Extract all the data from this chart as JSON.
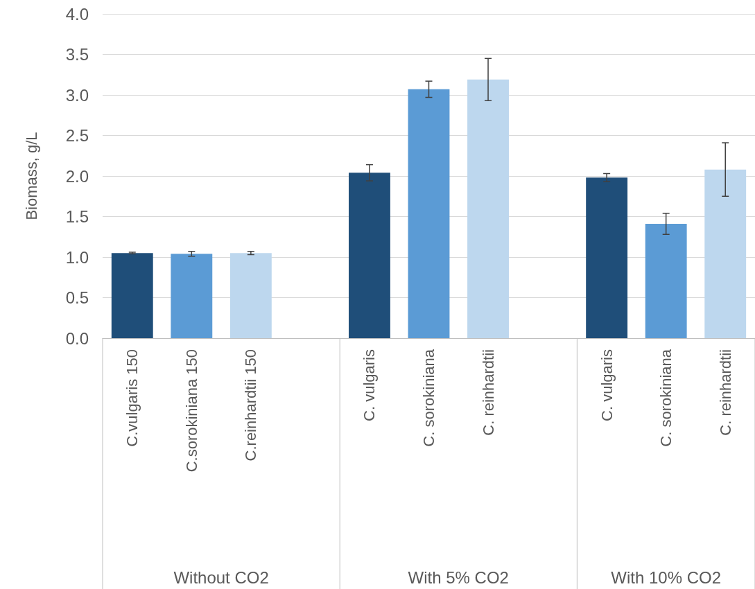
{
  "chart_data": {
    "type": "bar",
    "ylabel": "Biomass, g/L",
    "categories": [
      "C.vulgaris 150",
      "C.sorokiniana 150",
      "C.reinhardtii 150",
      null,
      "C. vulgaris",
      "C. sorokiniana",
      "C. reinhardtii",
      null,
      "C. vulgaris",
      "C. sorokiniana",
      "C. reinhardtii"
    ],
    "values": [
      1.05,
      1.04,
      1.05,
      null,
      2.04,
      3.07,
      3.19,
      null,
      1.98,
      1.41,
      2.08
    ],
    "errors": [
      0.01,
      0.03,
      0.02,
      null,
      0.1,
      0.1,
      0.26,
      null,
      0.05,
      0.13,
      0.33
    ],
    "colors": [
      "#1f4e79",
      "#5b9bd5",
      "#bdd7ee",
      null,
      "#1f4e79",
      "#5b9bd5",
      "#bdd7ee",
      null,
      "#1f4e79",
      "#5b9bd5",
      "#bdd7ee"
    ],
    "annotations": [
      "Without CO2",
      "With 5% CO2",
      "With 10% CO2"
    ],
    "ylim": [
      0,
      4
    ],
    "yticks": [
      {
        "value": 0,
        "label": "0.0"
      },
      0.5,
      {
        "value": 1,
        "label": "1.0"
      },
      1.5,
      {
        "value": 2,
        "label": "2.0"
      },
      2.5,
      {
        "value": 3,
        "label": "3.0"
      },
      3.5,
      {
        "value": 4,
        "label": "4.0"
      }
    ],
    "grid": "y"
  }
}
